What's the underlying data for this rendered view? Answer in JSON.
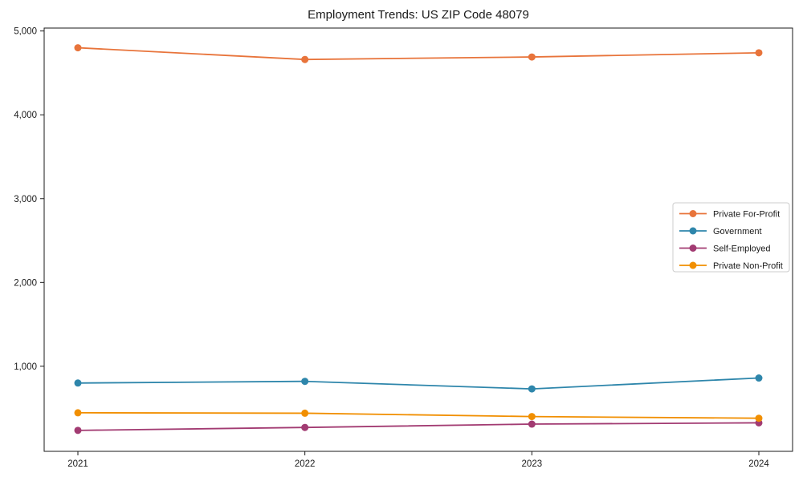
{
  "chart_data": {
    "type": "line",
    "title": "Employment Trends: US ZIP Code 48079",
    "categories": [
      "2021",
      "2022",
      "2023",
      "2024"
    ],
    "series": [
      {
        "name": "Private For-Profit",
        "color": "#E8743B",
        "values": [
          4800,
          4660,
          4690,
          4740
        ]
      },
      {
        "name": "Government",
        "color": "#2E86AB",
        "values": [
          800,
          820,
          730,
          860
        ]
      },
      {
        "name": "Self-Employed",
        "color": "#A23B72",
        "values": [
          235,
          270,
          310,
          325
        ]
      },
      {
        "name": "Private Non-Profit",
        "color": "#F18F01",
        "values": [
          445,
          440,
          400,
          380
        ]
      }
    ],
    "xlabel": "",
    "ylabel": "",
    "ylim": [
      -15,
      5035
    ],
    "yticks": [
      1000,
      2000,
      3000,
      4000,
      5000
    ],
    "ytick_labels": [
      "1,000",
      "2,000",
      "3,000",
      "4,000",
      "5,000"
    ],
    "grid": false,
    "legend_position": "center right",
    "marker": "circle",
    "axis_color": "#1a1a1a",
    "legend_border_color": "#cccccc",
    "background_color": "#ffffff"
  }
}
